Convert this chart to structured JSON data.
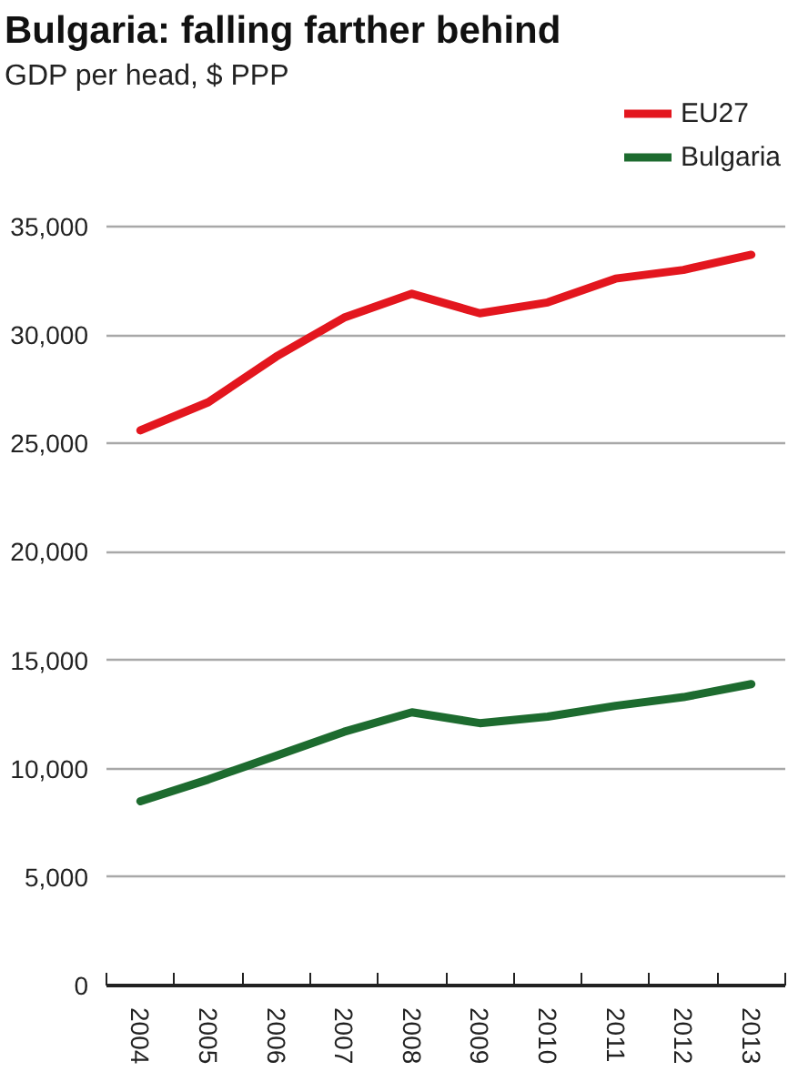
{
  "chart_data": {
    "type": "line",
    "title": "Bulgaria: falling farther behind",
    "subtitle": "GDP per head, $ PPP",
    "categories": [
      "2004",
      "2005",
      "2006",
      "2007",
      "2008",
      "2009",
      "2010",
      "2011",
      "2012",
      "2013"
    ],
    "series": [
      {
        "name": "EU27",
        "color": "#e3161e",
        "values": [
          25600,
          26900,
          29000,
          30800,
          31900,
          31000,
          31500,
          32600,
          33000,
          33700
        ]
      },
      {
        "name": "Bulgaria",
        "color": "#1d6b2f",
        "values": [
          8500,
          9500,
          10600,
          11700,
          12600,
          12100,
          12400,
          12900,
          13300,
          13900
        ]
      }
    ],
    "ylim": [
      0,
      35000
    ],
    "yticks": [
      0,
      {
        "value": 5000,
        "label": "5,000"
      },
      {
        "value": 10000,
        "label": "10,000"
      },
      {
        "value": 15000,
        "label": "15,000"
      },
      {
        "value": 20000,
        "label": "20,000"
      },
      {
        "value": 25000,
        "label": "25,000"
      },
      {
        "value": 30000,
        "label": "30,000"
      },
      {
        "value": 35000,
        "label": "35,000"
      }
    ],
    "grid": "y",
    "legend": "top right"
  }
}
